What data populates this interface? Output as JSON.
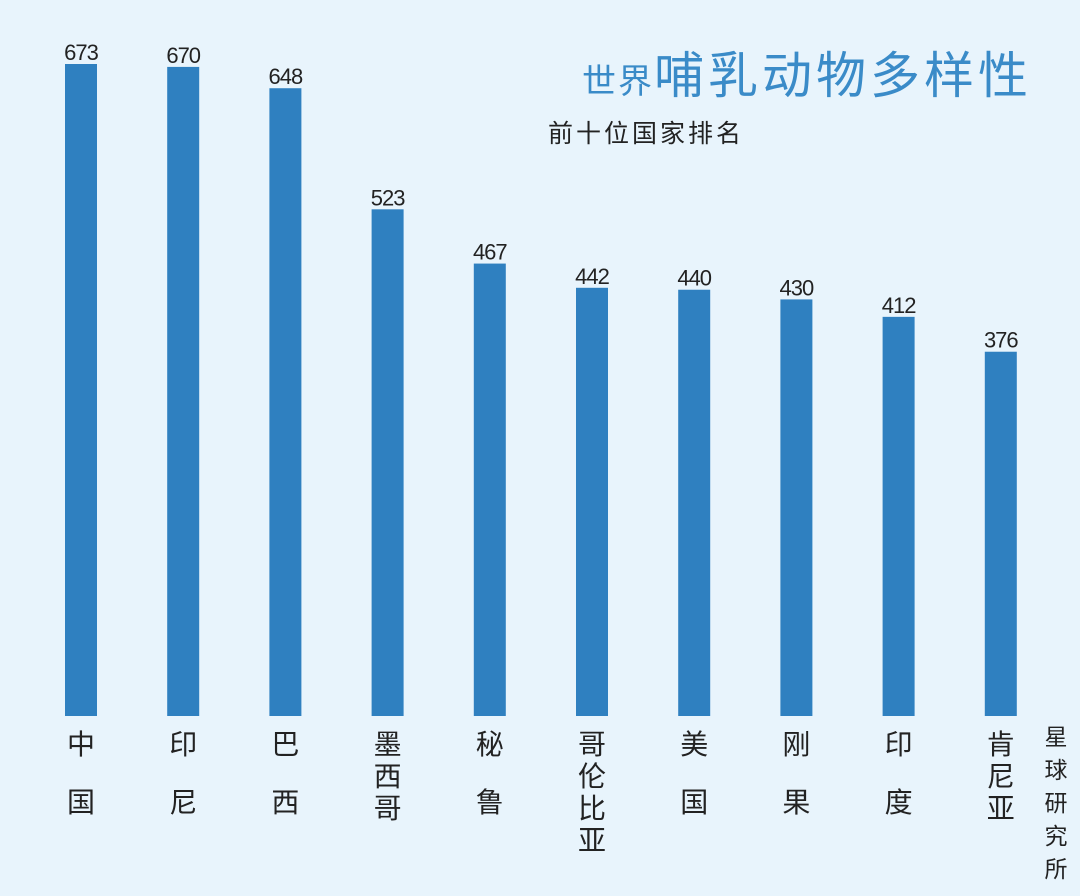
{
  "title_prefix": "世界",
  "title_main": "哺乳动物多样性",
  "subtitle": "前十位国家排名",
  "credit": "星球研究所",
  "colors": {
    "bar": "#2f80c0",
    "background": "#e8f4fc",
    "title": "#3a8bc8",
    "text": "#222222"
  },
  "chart_data": {
    "type": "bar",
    "title": "世界哺乳动物多样性",
    "subtitle": "前十位国家排名",
    "xlabel": "",
    "ylabel": "",
    "categories": [
      "中国",
      "印尼",
      "巴西",
      "墨西哥",
      "秘鲁",
      "哥伦比亚",
      "美国",
      "刚果",
      "印度",
      "肯尼亚"
    ],
    "values": [
      673,
      670,
      648,
      523,
      467,
      442,
      440,
      430,
      412,
      376
    ],
    "ylim": [
      0,
      673
    ],
    "grid": false,
    "legend": "none",
    "data_labels": true
  }
}
